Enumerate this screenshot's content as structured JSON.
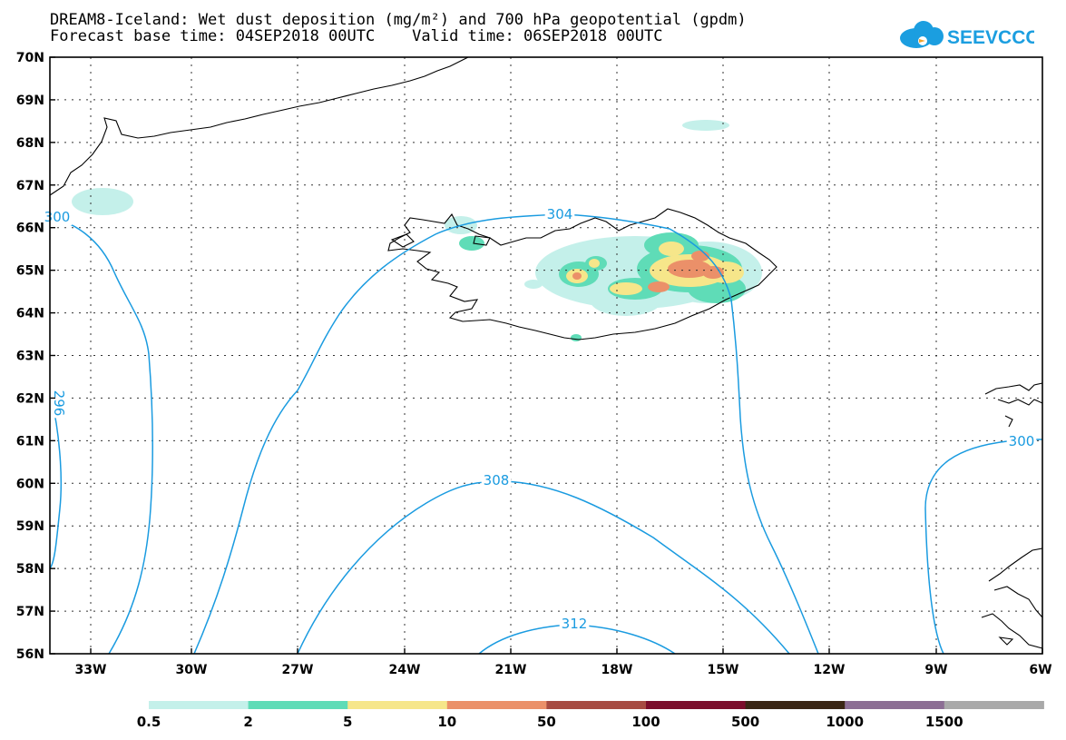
{
  "title_line1": "DREAM8-Iceland: Wet dust deposition (mg/m²) and 700 hPa geopotential (gpdm)",
  "title_line2": "Forecast base time: 04SEP2018 00UTC    Valid time: 06SEP2018 00UTC",
  "logo_text": "SEEVCCC",
  "lat_labels": [
    "70N",
    "69N",
    "68N",
    "67N",
    "66N",
    "65N",
    "64N",
    "63N",
    "62N",
    "61N",
    "60N",
    "59N",
    "58N",
    "57N",
    "56N"
  ],
  "lon_labels": [
    "33W",
    "30W",
    "27W",
    "24W",
    "21W",
    "18W",
    "15W",
    "12W",
    "9W",
    "6W"
  ],
  "contour_labels": {
    "c304": "304",
    "c300_left": "300",
    "c300_right": "300",
    "c296": "296",
    "c308": "308",
    "c312": "312"
  },
  "legend": {
    "labels": [
      "0.5",
      "2",
      "5",
      "10",
      "50",
      "100",
      "500",
      "1000",
      "1500"
    ],
    "colors": [
      "#c4f0ea",
      "#5fdcb7",
      "#f6e68a",
      "#eb9069",
      "#a74b42",
      "#7b0d2b",
      "#3a2614",
      "#8c6e94",
      "#a9a9a9"
    ]
  },
  "colors": {
    "contour": "#1a9be0",
    "coast": "#000000"
  }
}
